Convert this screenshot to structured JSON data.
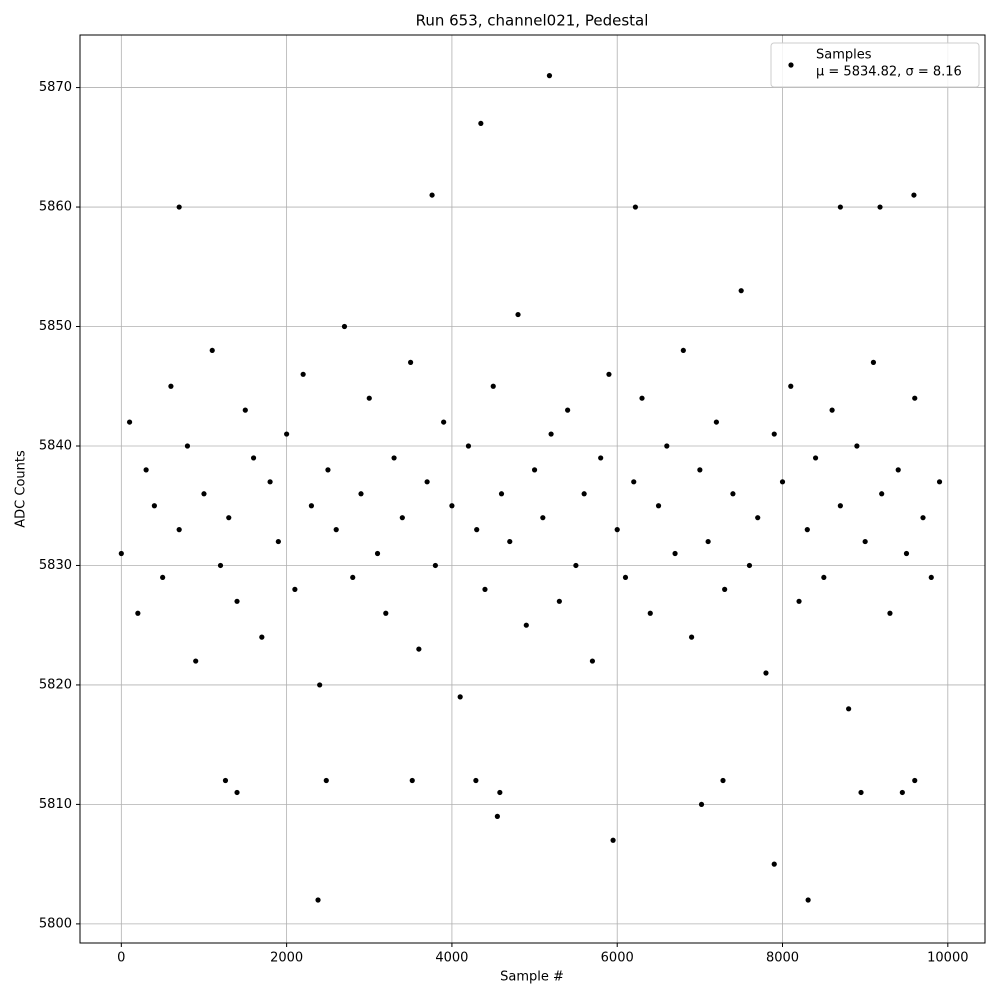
{
  "chart_data": {
    "type": "scatter",
    "title": "Run 653, channel021, Pedestal",
    "x_label": "Sample #",
    "y_label": "ADC Counts",
    "xlim": [
      -500,
      10450
    ],
    "ylim": [
      5798.4,
      5874.4
    ],
    "xticks": [
      0,
      2000,
      4000,
      6000,
      8000,
      10000
    ],
    "yticks": [
      5800,
      5810,
      5820,
      5830,
      5840,
      5850,
      5860,
      5870
    ],
    "grid": true,
    "legend_position": "upper right",
    "stats": "μ = 5834.82, σ = 8.16",
    "series": [
      {
        "name": "Samples",
        "color": "#000000",
        "x": [
          0,
          100,
          200,
          300,
          400,
          500,
          600,
          700,
          800,
          900,
          1000,
          1100,
          1200,
          1300,
          1400,
          1500,
          1600,
          1700,
          1800,
          1900,
          2000,
          2100,
          2200,
          2300,
          2400,
          2500,
          2600,
          2700,
          2800,
          2900,
          3000,
          3100,
          3200,
          3300,
          3400,
          3500,
          3600,
          3700,
          3800,
          3900,
          4000,
          4100,
          4200,
          4300,
          4400,
          4500,
          4600,
          4700,
          4800,
          4900,
          5000,
          5100,
          5200,
          5300,
          5400,
          5500,
          5600,
          5700,
          5800,
          5900,
          6000,
          6100,
          6200,
          6300,
          6400,
          6500,
          6600,
          6700,
          6800,
          6900,
          7000,
          7100,
          7200,
          7300,
          7400,
          7500,
          7600,
          7700,
          7800,
          7900,
          8000,
          8100,
          8200,
          8300,
          8400,
          8500,
          8600,
          8700,
          8800,
          8900,
          9000,
          9100,
          9200,
          9300,
          9400,
          9500,
          9600,
          9700,
          9800,
          9900,
          2380,
          8310,
          7900,
          5950,
          4550,
          7020,
          5180,
          4350,
          6220,
          3760,
          9590,
          700,
          8700,
          9180,
          1400,
          8950,
          9450,
          4580,
          1260,
          2480,
          3520,
          4290,
          7280,
          9600
        ],
        "values": [
          5831,
          5842,
          5826,
          5838,
          5835,
          5829,
          5845,
          5833,
          5840,
          5822,
          5836,
          5848,
          5830,
          5834,
          5827,
          5843,
          5839,
          5824,
          5837,
          5832,
          5841,
          5828,
          5846,
          5835,
          5820,
          5838,
          5833,
          5850,
          5829,
          5836,
          5844,
          5831,
          5826,
          5839,
          5834,
          5847,
          5823,
          5837,
          5830,
          5842,
          5835,
          5819,
          5840,
          5833,
          5828,
          5845,
          5836,
          5832,
          5851,
          5825,
          5838,
          5834,
          5841,
          5827,
          5843,
          5830,
          5836,
          5822,
          5839,
          5846,
          5833,
          5829,
          5837,
          5844,
          5826,
          5835,
          5840,
          5831,
          5848,
          5824,
          5838,
          5832,
          5842,
          5828,
          5836,
          5853,
          5830,
          5834,
          5821,
          5841,
          5837,
          5845,
          5827,
          5833,
          5839,
          5829,
          5843,
          5835,
          5818,
          5840,
          5832,
          5847,
          5836,
          5826,
          5838,
          5831,
          5844,
          5834,
          5829,
          5837,
          5802,
          5802,
          5805,
          5807,
          5809,
          5810,
          5871,
          5867,
          5860,
          5861,
          5861,
          5860,
          5860,
          5860,
          5811,
          5811,
          5811,
          5811,
          5812,
          5812,
          5812,
          5812,
          5812,
          5812
        ]
      }
    ]
  }
}
